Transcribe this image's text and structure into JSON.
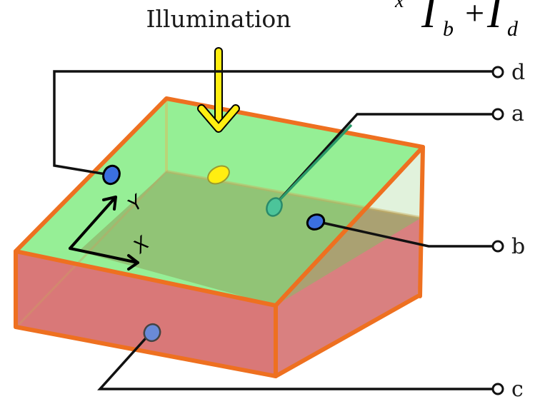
{
  "illumination_label": "Illumination",
  "formula": {
    "prefix": "x",
    "term1": "I",
    "sub1": "b",
    "op": "+",
    "term2": "I",
    "sub2": "d"
  },
  "axis_labels": {
    "x": "X",
    "y": "Y"
  },
  "contact_labels": {
    "a": "a",
    "b": "b",
    "c": "c",
    "d": "d"
  },
  "colors": {
    "top_face": "#90ee90",
    "front_face": "#d97878",
    "side_face": "#d4d4d4",
    "edge": "#ee7020",
    "arrow": "#ffee11",
    "spot": "#ffee11",
    "contact_blue": "#3b6fe0",
    "contact_teal": "#4cc49a",
    "wire": "#111111"
  },
  "icons": [
    "illumination-arrow-icon",
    "contact-terminal-icon"
  ]
}
